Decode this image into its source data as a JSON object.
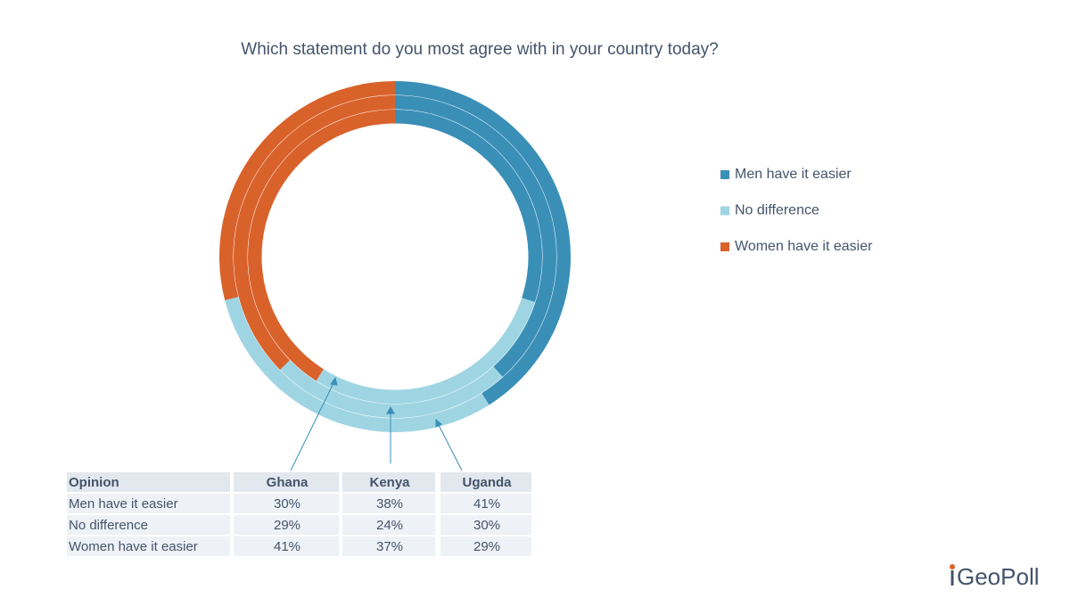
{
  "chart_data": {
    "type": "donut",
    "title": "Which statement do you most agree with in your country today?",
    "categories": [
      "Ghana",
      "Kenya",
      "Uganda"
    ],
    "series": [
      {
        "name": "Men have it easier",
        "color": "#3a8fb7",
        "values": [
          30,
          38,
          41
        ],
        "value_labels": [
          "30%",
          "38%",
          "41%"
        ]
      },
      {
        "name": "No difference",
        "color": "#9fd5e3",
        "values": [
          29,
          24,
          30
        ],
        "value_labels": [
          "29%",
          "24%",
          "30%"
        ]
      },
      {
        "name": "Women have it easier",
        "color": "#d9622b",
        "values": [
          41,
          37,
          29
        ],
        "value_labels": [
          "41%",
          "37%",
          "29%"
        ]
      }
    ],
    "legend": "right",
    "table_header": "Opinion"
  },
  "logo": "GeoPoll"
}
